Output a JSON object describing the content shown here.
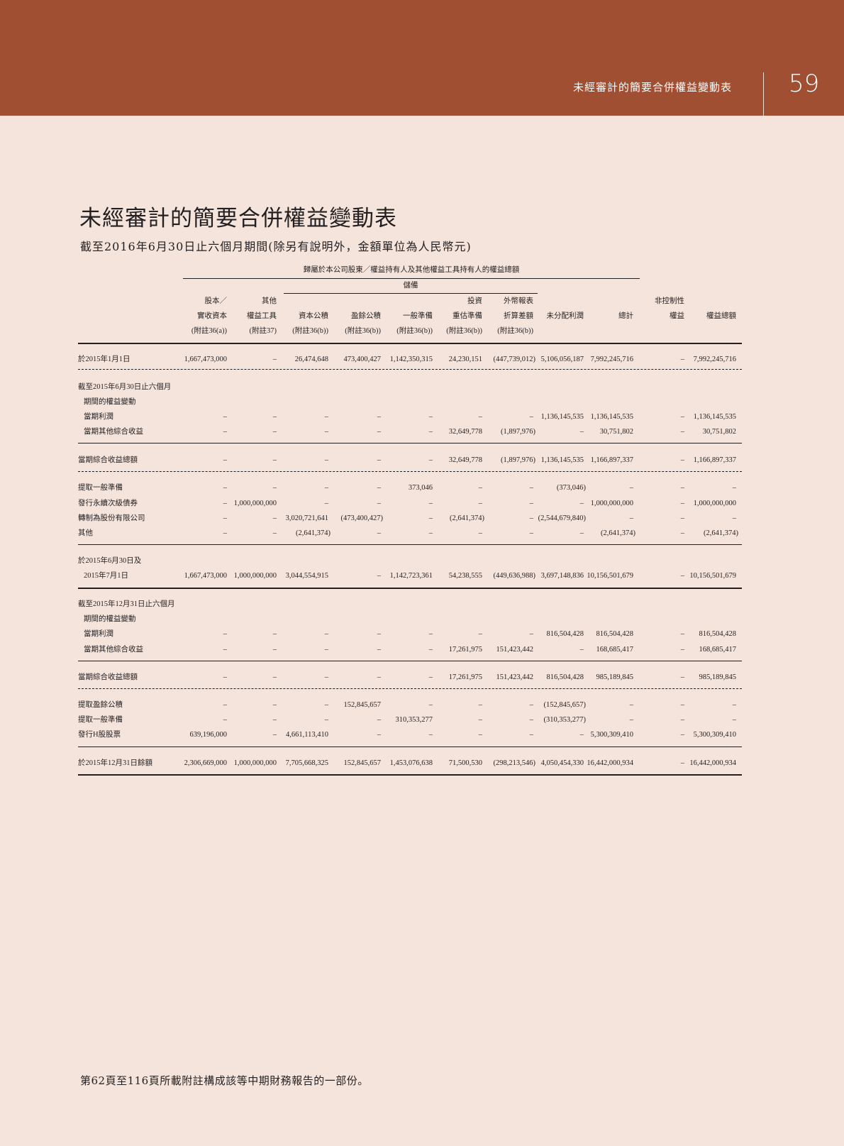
{
  "header": {
    "section_title": "未經審計的簡要合併權益變動表",
    "page_number": "59",
    "band_color": "#a04f33"
  },
  "title": "未經審計的簡要合併權益變動表",
  "subtitle": "截至2016年6月30日止六個月期間(除另有說明外，金額單位為人民幣元)",
  "table": {
    "group_header": "歸屬於本公司股東／權益持有人及其他權益工具持有人的權益總額",
    "reserves_header": "儲備",
    "columns": [
      [
        "股本／",
        "實收資本",
        "(附註36(a))"
      ],
      [
        "其他",
        "權益工具",
        "(附註37)"
      ],
      [
        "",
        "資本公積",
        "(附註36(b))"
      ],
      [
        "",
        "盈餘公積",
        "(附註36(b))"
      ],
      [
        "",
        "一般準備",
        "(附註36(b))"
      ],
      [
        "投資",
        "重估準備",
        "(附註36(b))"
      ],
      [
        "外幣報表",
        "折算差額",
        "(附註36(b))"
      ],
      [
        "",
        "未分配利潤",
        ""
      ],
      [
        "",
        "總計",
        ""
      ],
      [
        "非控制性",
        "權益",
        ""
      ],
      [
        "",
        "權益總額",
        ""
      ]
    ],
    "rows": [
      {
        "label": "於2015年1月1日",
        "values": [
          "1,667,473,000",
          "–",
          "26,474,648",
          "473,400,427",
          "1,142,350,315",
          "24,230,151",
          "(447,739,012)",
          "5,106,056,187",
          "7,992,245,716",
          "–",
          "7,992,245,716"
        ]
      },
      {
        "label": "截至2015年6月30日止六個月",
        "values": []
      },
      {
        "label": "期間的權益變動",
        "values": []
      },
      {
        "label": "當期利潤",
        "values": [
          "–",
          "–",
          "–",
          "–",
          "–",
          "–",
          "–",
          "1,136,145,535",
          "1,136,145,535",
          "–",
          "1,136,145,535"
        ]
      },
      {
        "label": "當期其他綜合收益",
        "values": [
          "–",
          "–",
          "–",
          "–",
          "–",
          "32,649,778",
          "(1,897,976)",
          "–",
          "30,751,802",
          "–",
          "30,751,802"
        ]
      },
      {
        "label": "當期綜合收益總額",
        "values": [
          "–",
          "–",
          "–",
          "–",
          "–",
          "32,649,778",
          "(1,897,976)",
          "1,136,145,535",
          "1,166,897,337",
          "–",
          "1,166,897,337"
        ]
      },
      {
        "label": "提取一般準備",
        "values": [
          "–",
          "–",
          "–",
          "–",
          "373,046",
          "–",
          "–",
          "(373,046)",
          "–",
          "–",
          "–"
        ]
      },
      {
        "label": "發行永續次級債券",
        "values": [
          "–",
          "1,000,000,000",
          "–",
          "–",
          "–",
          "–",
          "–",
          "–",
          "1,000,000,000",
          "–",
          "1,000,000,000"
        ]
      },
      {
        "label": "轉制為股份有限公司",
        "values": [
          "–",
          "–",
          "3,020,721,641",
          "(473,400,427)",
          "–",
          "(2,641,374)",
          "–",
          "(2,544,679,840)",
          "–",
          "–",
          "–"
        ]
      },
      {
        "label": "其他",
        "values": [
          "–",
          "–",
          "(2,641,374)",
          "–",
          "–",
          "–",
          "–",
          "–",
          "(2,641,374)",
          "–",
          "(2,641,374)"
        ]
      },
      {
        "label": "於2015年6月30日及",
        "values": []
      },
      {
        "label": "2015年7月1日",
        "values": [
          "1,667,473,000",
          "1,000,000,000",
          "3,044,554,915",
          "–",
          "1,142,723,361",
          "54,238,555",
          "(449,636,988)",
          "3,697,148,836",
          "10,156,501,679",
          "–",
          "10,156,501,679"
        ]
      },
      {
        "label": "截至2015年12月31日止六個月",
        "values": []
      },
      {
        "label": "期間的權益變動",
        "values": []
      },
      {
        "label": "當期利潤",
        "values": [
          "–",
          "–",
          "–",
          "–",
          "–",
          "–",
          "–",
          "816,504,428",
          "816,504,428",
          "–",
          "816,504,428"
        ]
      },
      {
        "label": "當期其他綜合收益",
        "values": [
          "–",
          "–",
          "–",
          "–",
          "–",
          "17,261,975",
          "151,423,442",
          "–",
          "168,685,417",
          "–",
          "168,685,417"
        ]
      },
      {
        "label": "當期綜合收益總額",
        "values": [
          "–",
          "–",
          "–",
          "–",
          "–",
          "17,261,975",
          "151,423,442",
          "816,504,428",
          "985,189,845",
          "–",
          "985,189,845"
        ]
      },
      {
        "label": "提取盈餘公積",
        "values": [
          "–",
          "–",
          "–",
          "152,845,657",
          "–",
          "–",
          "–",
          "(152,845,657)",
          "–",
          "–",
          "–"
        ]
      },
      {
        "label": "提取一般準備",
        "values": [
          "–",
          "–",
          "–",
          "–",
          "310,353,277",
          "–",
          "–",
          "(310,353,277)",
          "–",
          "–",
          "–"
        ]
      },
      {
        "label": "發行H股股票",
        "values": [
          "639,196,000",
          "–",
          "4,661,113,410",
          "–",
          "–",
          "–",
          "–",
          "–",
          "5,300,309,410",
          "–",
          "5,300,309,410"
        ]
      },
      {
        "label": "於2015年12月31日餘額",
        "values": [
          "2,306,669,000",
          "1,000,000,000",
          "7,705,668,325",
          "152,845,657",
          "1,453,076,638",
          "71,500,530",
          "(298,213,546)",
          "4,050,454,330",
          "16,442,000,934",
          "–",
          "16,442,000,934"
        ]
      }
    ]
  },
  "footer": "第62頁至116頁所載附註構成該等中期財務報告的一部份。"
}
